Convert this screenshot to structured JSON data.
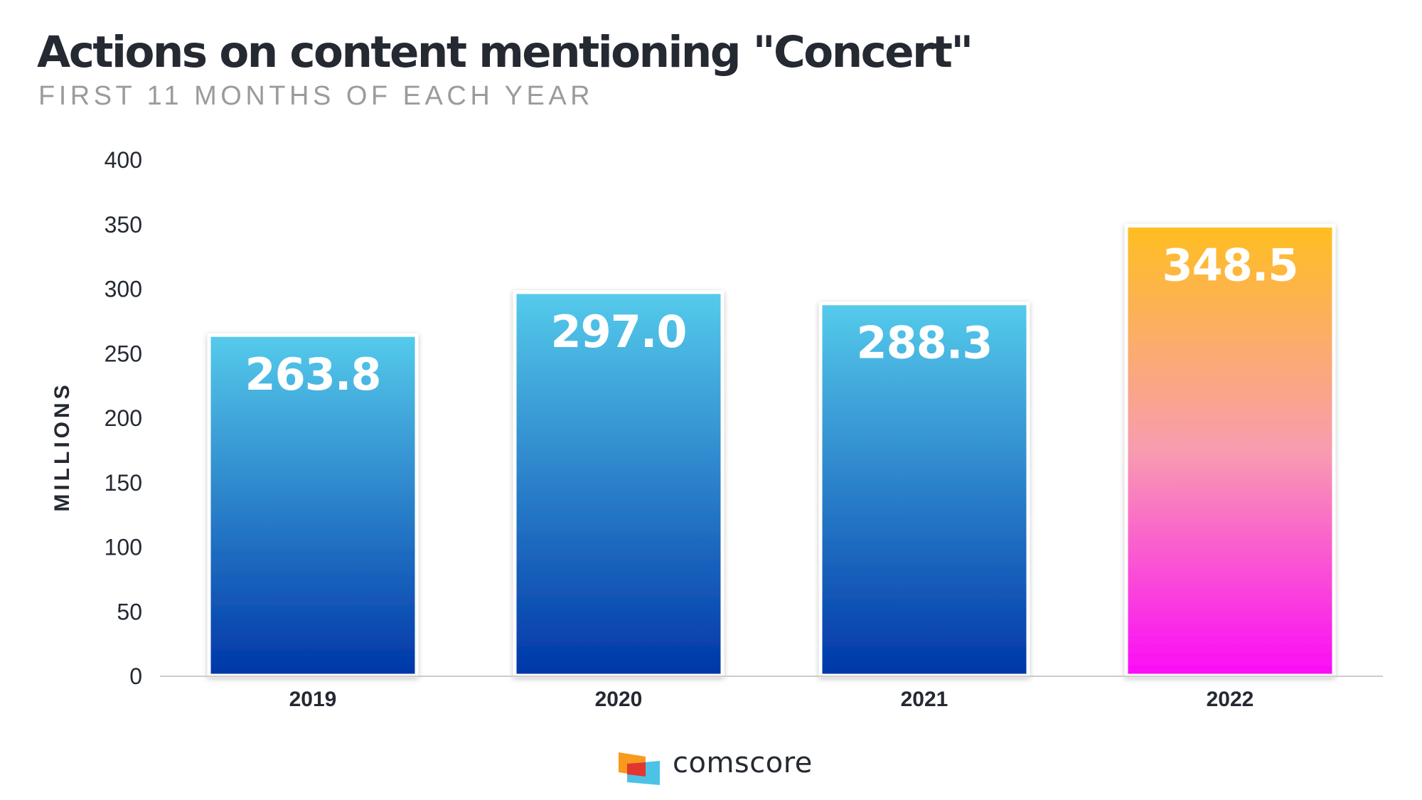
{
  "header": {
    "title": "Actions on content mentioning \"Concert\"",
    "subtitle": "FIRST 11 MONTHS OF EACH YEAR"
  },
  "chart_data": {
    "type": "bar",
    "title": "Actions on content mentioning \"Concert\"",
    "subtitle": "FIRST 11 MONTHS OF EACH YEAR",
    "xlabel": "",
    "ylabel": "MILLIONS",
    "categories": [
      "2019",
      "2020",
      "2021",
      "2022"
    ],
    "values": [
      263.8,
      297.0,
      288.3,
      348.5
    ],
    "value_labels": [
      "263.8",
      "297.0",
      "288.3",
      "348.5"
    ],
    "ylim": [
      0,
      400
    ],
    "yticks": [
      0,
      50,
      100,
      150,
      200,
      250,
      300,
      350,
      400
    ],
    "grid": false,
    "legend": "none",
    "highlight_index": 3,
    "colors": {
      "default_top": "#55cbeb",
      "default_bottom": "#0036a8",
      "highlight_top": "#ffbe20",
      "highlight_mid": "#f89cb0",
      "highlight_bottom": "#fb0bf7",
      "axis_line": "#cccccc",
      "tick_text": "#242932"
    }
  },
  "brand": {
    "name": "comscore",
    "logo_icon": "comscore-logo-icon",
    "colors": {
      "orange": "#f89a1c",
      "red": "#e5352f",
      "cyan": "#4cc2e6"
    }
  }
}
